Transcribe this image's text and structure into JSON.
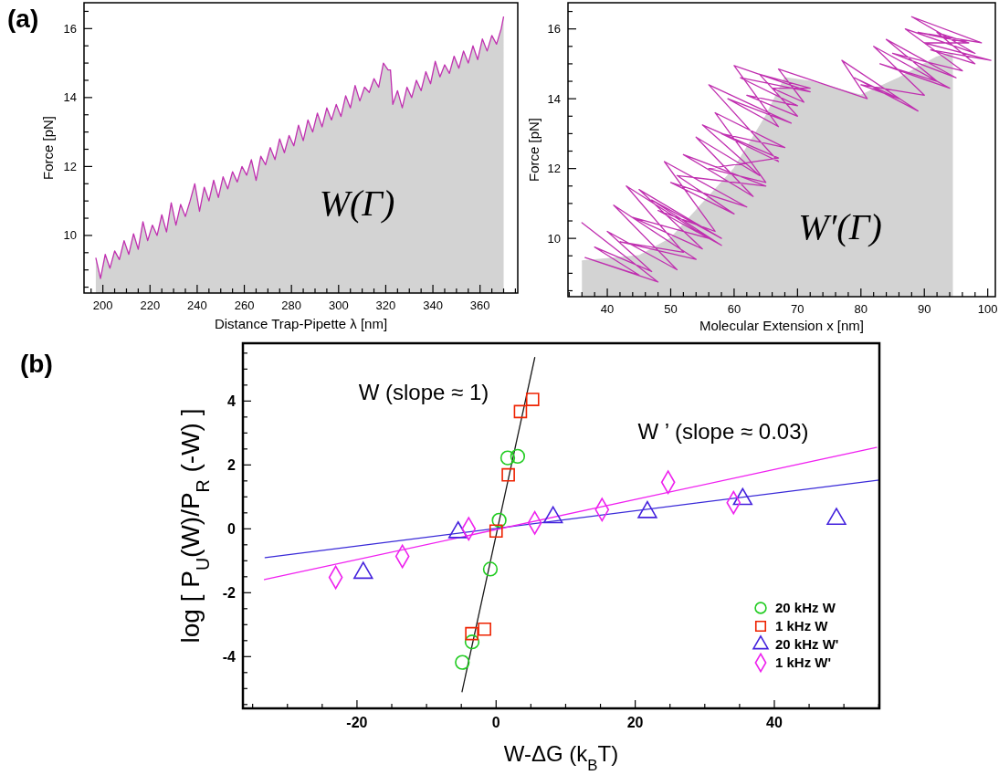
{
  "chart_data": [
    {
      "type": "area",
      "xlabel": "Distance Trap-Pipette λ [nm]",
      "ylabel": "Force [pN]",
      "annotations": [
        "(a)",
        "W(Γ)"
      ],
      "xlim": [
        192,
        376
      ],
      "ylim": [
        8.33,
        16.75
      ],
      "xticks": [
        {
          "value": 195,
          "label": null
        },
        200,
        {
          "value": 205,
          "label": null
        },
        {
          "value": 210,
          "label": null
        },
        {
          "value": 215,
          "label": null
        },
        220,
        {
          "value": 225,
          "label": null
        },
        {
          "value": 230,
          "label": null
        },
        {
          "value": 235,
          "label": null
        },
        240,
        {
          "value": 245,
          "label": null
        },
        {
          "value": 250,
          "label": null
        },
        {
          "value": 255,
          "label": null
        },
        260,
        {
          "value": 265,
          "label": null
        },
        {
          "value": 270,
          "label": null
        },
        {
          "value": 275,
          "label": null
        },
        280,
        {
          "value": 285,
          "label": null
        },
        {
          "value": 290,
          "label": null
        },
        {
          "value": 295,
          "label": null
        },
        300,
        {
          "value": 305,
          "label": null
        },
        {
          "value": 310,
          "label": null
        },
        {
          "value": 315,
          "label": null
        },
        320,
        {
          "value": 325,
          "label": null
        },
        {
          "value": 330,
          "label": null
        },
        {
          "value": 335,
          "label": null
        },
        340,
        {
          "value": 345,
          "label": null
        },
        {
          "value": 350,
          "label": null
        },
        {
          "value": 355,
          "label": null
        },
        360,
        {
          "value": 365,
          "label": null
        },
        {
          "value": 370,
          "label": null
        },
        {
          "value": 375,
          "label": null
        }
      ],
      "yticks": [
        {
          "value": 8.5,
          "label": null
        },
        {
          "value": 9,
          "label": null
        },
        {
          "value": 9.5,
          "label": null
        },
        10,
        {
          "value": 10.5,
          "label": null
        },
        {
          "value": 11,
          "label": null
        },
        {
          "value": 11.5,
          "label": null
        },
        12,
        {
          "value": 12.5,
          "label": null
        },
        {
          "value": 13,
          "label": null
        },
        {
          "value": 13.5,
          "label": null
        },
        14,
        {
          "value": 14.5,
          "label": null
        },
        {
          "value": 15,
          "label": null
        },
        {
          "value": 15.5,
          "label": null
        },
        16,
        {
          "value": 16.5,
          "label": null
        }
      ],
      "x": [
        197,
        199,
        201,
        203,
        205,
        207,
        209,
        211,
        213,
        215,
        217,
        219,
        221,
        223,
        225,
        227,
        229,
        231,
        233,
        235,
        237,
        239,
        241,
        243,
        245,
        247,
        249,
        251,
        253,
        255,
        257,
        259,
        261,
        263,
        265,
        267,
        269,
        271,
        273,
        275,
        277,
        279,
        281,
        283,
        285,
        287,
        289,
        291,
        293,
        295,
        297,
        299,
        301,
        303,
        305,
        307,
        309,
        311,
        313,
        315,
        317,
        319,
        321,
        322,
        323,
        325,
        327,
        329,
        331,
        333,
        335,
        337,
        339,
        341,
        343,
        345,
        347,
        349,
        351,
        353,
        355,
        357,
        359,
        361,
        363,
        365,
        367,
        369,
        370
      ],
      "series": [
        {
          "color": "#c030b0",
          "values": [
            9.35,
            8.75,
            9.45,
            9.05,
            9.55,
            9.3,
            9.85,
            9.45,
            10.05,
            9.6,
            10.4,
            9.85,
            10.3,
            10.0,
            10.6,
            10.1,
            10.95,
            10.3,
            10.9,
            10.55,
            11.0,
            11.5,
            10.7,
            11.4,
            11.0,
            11.6,
            11.1,
            11.7,
            11.35,
            11.85,
            11.55,
            12.0,
            11.75,
            12.2,
            11.6,
            12.3,
            12.05,
            12.55,
            12.2,
            12.8,
            12.4,
            12.9,
            12.6,
            13.2,
            12.75,
            13.35,
            13.0,
            13.55,
            13.15,
            13.7,
            13.35,
            13.8,
            13.45,
            14.05,
            13.7,
            14.35,
            13.9,
            14.3,
            14.15,
            14.55,
            14.3,
            15.0,
            14.8,
            14.8,
            13.8,
            14.2,
            13.7,
            14.3,
            14.0,
            14.5,
            14.2,
            14.75,
            14.4,
            15.05,
            14.6,
            14.95,
            14.7,
            15.2,
            14.85,
            15.35,
            15.0,
            15.5,
            15.1,
            15.7,
            15.35,
            15.8,
            15.55,
            16.0,
            16.35
          ]
        }
      ]
    },
    {
      "type": "line",
      "xlabel": "Molecular Extension x [nm]",
      "ylabel": "Force [pN]",
      "annotations": [
        "W′(Γ)"
      ],
      "xlim": [
        33.8,
        101.2
      ],
      "ylim": [
        8.33,
        16.75
      ],
      "xticks": [
        {
          "value": 34,
          "label": null
        },
        {
          "value": 36,
          "label": null
        },
        {
          "value": 38,
          "label": null
        },
        40,
        {
          "value": 42,
          "label": null
        },
        {
          "value": 44,
          "label": null
        },
        {
          "value": 46,
          "label": null
        },
        {
          "value": 48,
          "label": null
        },
        50,
        {
          "value": 52,
          "label": null
        },
        {
          "value": 54,
          "label": null
        },
        {
          "value": 56,
          "label": null
        },
        {
          "value": 58,
          "label": null
        },
        60,
        {
          "value": 62,
          "label": null
        },
        {
          "value": 64,
          "label": null
        },
        {
          "value": 66,
          "label": null
        },
        {
          "value": 68,
          "label": null
        },
        70,
        {
          "value": 72,
          "label": null
        },
        {
          "value": 74,
          "label": null
        },
        {
          "value": 76,
          "label": null
        },
        {
          "value": 78,
          "label": null
        },
        80,
        {
          "value": 82,
          "label": null
        },
        {
          "value": 84,
          "label": null
        },
        {
          "value": 86,
          "label": null
        },
        {
          "value": 88,
          "label": null
        },
        90,
        {
          "value": 92,
          "label": null
        },
        {
          "value": 94,
          "label": null
        },
        {
          "value": 96,
          "label": null
        },
        {
          "value": 98,
          "label": null
        },
        100
      ],
      "yticks": [
        {
          "value": 8.5,
          "label": null
        },
        {
          "value": 9,
          "label": null
        },
        {
          "value": 9.5,
          "label": null
        },
        10,
        {
          "value": 10.5,
          "label": null
        },
        {
          "value": 11,
          "label": null
        },
        {
          "value": 11.5,
          "label": null
        },
        12,
        {
          "value": 12.5,
          "label": null
        },
        {
          "value": 13,
          "label": null
        },
        {
          "value": 13.5,
          "label": null
        },
        14,
        {
          "value": 14.5,
          "label": null
        },
        {
          "value": 15,
          "label": null
        },
        {
          "value": 15.5,
          "label": null
        },
        16,
        {
          "value": 16.5,
          "label": null
        }
      ],
      "series": [
        {
          "type": "area",
          "color": "#d3d3d3",
          "x": [
            36,
            45,
            50,
            55,
            60,
            65,
            68,
            72,
            80,
            86,
            92,
            94.5
          ],
          "values": [
            9.35,
            9.5,
            10.0,
            11.0,
            12.0,
            13.5,
            14.6,
            14.5,
            14.1,
            14.6,
            15.2,
            15.3
          ]
        },
        {
          "color": "#c030b0",
          "x": [
            36,
            48,
            36.5,
            45,
            38,
            47,
            40,
            51,
            41,
            54,
            42,
            52,
            43,
            56,
            44,
            55,
            45,
            58,
            47,
            58,
            48,
            57,
            49,
            62,
            50,
            60,
            51,
            65,
            52,
            63,
            54,
            64,
            55,
            67,
            56,
            65,
            57,
            68,
            58,
            67,
            56,
            69,
            59,
            67,
            60,
            72,
            61,
            70,
            62,
            70,
            64,
            72,
            66,
            71,
            67,
            81,
            77,
            89,
            79,
            86,
            80,
            90,
            82,
            94,
            83,
            92,
            84,
            95,
            85,
            96,
            87,
            98,
            88,
            99,
            89,
            97,
            90,
            100.5,
            91,
            98,
            92,
            97
          ],
          "values": [
            10.45,
            8.75,
            9.45,
            8.95,
            9.75,
            9.05,
            10.2,
            9.1,
            10.95,
            9.4,
            9.9,
            9.6,
            11.5,
            10.0,
            10.6,
            9.7,
            11.4,
            10.0,
            11.1,
            9.8,
            10.8,
            10.2,
            12.2,
            10.9,
            11.6,
            10.7,
            11.8,
            11.5,
            12.4,
            11.2,
            12.9,
            11.8,
            13.25,
            12.3,
            12.0,
            11.6,
            13.6,
            12.6,
            13.0,
            12.2,
            14.4,
            13.3,
            14.0,
            13.2,
            14.95,
            14.2,
            14.6,
            13.8,
            14.1,
            13.5,
            14.7,
            14.3,
            14.3,
            13.9,
            14.85,
            14.0,
            15.1,
            13.65,
            14.6,
            14.0,
            14.4,
            14.1,
            15.5,
            14.3,
            15.0,
            14.5,
            15.7,
            14.6,
            15.3,
            14.8,
            16.0,
            15.3,
            16.35,
            15.6,
            15.9,
            15.6,
            15.6,
            15.1,
            15.4,
            15.0,
            15.9,
            15.6
          ]
        }
      ]
    },
    {
      "type": "scatter",
      "xlabel": "W-ΔG (k$_{B}$T)",
      "ylabel": "log [ P$_{U}$(W)/P$_{R}$ (-W) ]",
      "annotations": [
        "(b)",
        "W (slope ≈ 1)",
        "W ’ (slope ≈ 0.03)"
      ],
      "xlim": [
        -36.4,
        55.1
      ],
      "ylim": [
        -5.62,
        5.81
      ],
      "legend": "bottom right",
      "xticks": [
        {
          "value": -35,
          "label": null
        },
        {
          "value": -30,
          "label": null
        },
        {
          "value": -25,
          "label": null
        },
        -20,
        {
          "value": -15,
          "label": null
        },
        {
          "value": -10,
          "label": null
        },
        {
          "value": -5,
          "label": null
        },
        0,
        {
          "value": 5,
          "label": null
        },
        {
          "value": 10,
          "label": null
        },
        {
          "value": 15,
          "label": null
        },
        20,
        {
          "value": 25,
          "label": null
        },
        {
          "value": 30,
          "label": null
        },
        {
          "value": 35,
          "label": null
        },
        40,
        {
          "value": 45,
          "label": null
        },
        {
          "value": 50,
          "label": null
        },
        {
          "value": 55,
          "label": null
        }
      ],
      "yticks": [
        {
          "value": -5.5,
          "label": null
        },
        {
          "value": -5,
          "label": null
        },
        {
          "value": -4.5,
          "label": null
        },
        -4,
        {
          "value": -3.5,
          "label": null
        },
        {
          "value": -3,
          "label": null
        },
        {
          "value": -2.5,
          "label": null
        },
        -2,
        {
          "value": -1.5,
          "label": null
        },
        {
          "value": -1,
          "label": null
        },
        {
          "value": -0.5,
          "label": null
        },
        0,
        {
          "value": 0.5,
          "label": null
        },
        {
          "value": 1,
          "label": null
        },
        {
          "value": 1.5,
          "label": null
        },
        2,
        {
          "value": 2.5,
          "label": null
        },
        {
          "value": 3,
          "label": null
        },
        {
          "value": 3.5,
          "label": null
        },
        4,
        {
          "value": 4.5,
          "label": null
        },
        {
          "value": 5,
          "label": null
        },
        {
          "value": 5.5,
          "label": null
        }
      ],
      "series": [
        {
          "type": "line",
          "color": "#1a1a1a",
          "x": [
            -4.9,
            5.56
          ],
          "values": [
            -5.1,
            5.36
          ]
        },
        {
          "type": "line",
          "color": "#3a2ad8",
          "x": [
            -33.2,
            55.1
          ],
          "values": [
            -0.9,
            1.53
          ]
        },
        {
          "type": "line",
          "color": "#f020f0",
          "x": [
            -33.3,
            54.7
          ],
          "values": [
            -1.59,
            2.55
          ]
        },
        {
          "name": "20 kHz W",
          "marker": "circle",
          "color": "#22cc22",
          "x": [
            0.44,
            1.67,
            3.1,
            -0.83,
            -3.45,
            -4.86
          ],
          "values": [
            0.27,
            2.22,
            2.27,
            -1.26,
            -3.54,
            -4.18
          ]
        },
        {
          "name": "1 kHz W",
          "marker": "square",
          "color": "#ee2200",
          "x": [
            5.25,
            3.5,
            1.75,
            0,
            -1.66,
            -3.5
          ],
          "values": [
            4.05,
            3.67,
            1.69,
            -0.07,
            -3.14,
            -3.28
          ]
        },
        {
          "name": "20 kHz W'",
          "marker": "triangle",
          "color": "#4422dd",
          "x": [
            -5.46,
            -19.1,
            8.19,
            21.75,
            35.45,
            48.93
          ],
          "values": [
            -0.11,
            -1.38,
            0.36,
            0.52,
            0.93,
            0.31
          ]
        },
        {
          "name": "1 kHz W'",
          "marker": "diamond",
          "color": "#ee22ee",
          "x": [
            -23.06,
            -13.47,
            -3.94,
            5.56,
            15.23,
            24.73,
            34.13
          ],
          "values": [
            -1.52,
            -0.86,
            0.0,
            0.19,
            0.6,
            1.46,
            0.82
          ]
        }
      ]
    }
  ]
}
